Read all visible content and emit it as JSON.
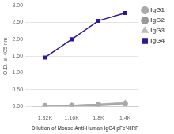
{
  "chart_data": {
    "type": "line",
    "xlabel": "Dilution of Mouse Anti-Human IgG4 pFc'-HRP",
    "ylabel": "O.D. at 405 nm",
    "categories": [
      "1:32K",
      "1:16K",
      "1:8K",
      "1:4K"
    ],
    "series": [
      {
        "name": "IgG1",
        "color": "#aaaaaa",
        "marker": "circle",
        "values": [
          0.02,
          0.03,
          0.055,
          0.09
        ]
      },
      {
        "name": "IgG2",
        "color": "#999999",
        "marker": "circle",
        "values": [
          0.02,
          0.03,
          0.05,
          0.08
        ]
      },
      {
        "name": "IgG3",
        "color": "#bbbbbb",
        "marker": "triangle",
        "values": [
          0.02,
          0.035,
          0.065,
          0.12
        ]
      },
      {
        "name": "IgG4",
        "color": "#2a1a9a",
        "marker": "square",
        "values": [
          1.46,
          2.0,
          2.55,
          2.78
        ]
      }
    ],
    "ylim": [
      0,
      3.0
    ],
    "yticks": [
      {
        "value": 0,
        "label": "0.00"
      },
      {
        "value": 0.5,
        "label": "0.50"
      },
      {
        "value": 1.0,
        "label": "1.00"
      },
      {
        "value": 1.5,
        "label": "1.50"
      },
      {
        "value": 2.0,
        "label": "2.00"
      },
      {
        "value": 2.5,
        "label": "2.50"
      },
      {
        "value": 3.0,
        "label": "3.00"
      }
    ],
    "grid": true,
    "legend": "right"
  }
}
